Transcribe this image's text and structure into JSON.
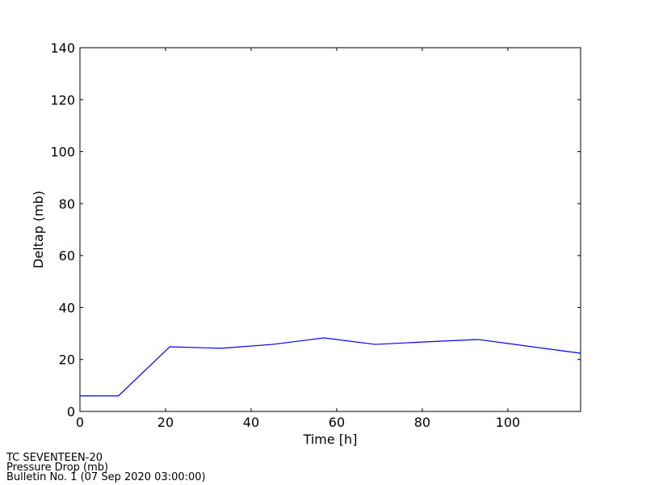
{
  "chart_data": {
    "type": "line",
    "xlabel": "Time [h]",
    "ylabel": "Deltap (mb)",
    "x": [
      0,
      9,
      21,
      33,
      45,
      57,
      69,
      81,
      93,
      117
    ],
    "series": [
      {
        "name": "Pressure Drop",
        "color": "#0000ff",
        "values": [
          6,
          6,
          24.9,
          24.3,
          25.8,
          28.3,
          25.8,
          26.8,
          27.7,
          22.4
        ]
      }
    ],
    "xlim": [
      0,
      117
    ],
    "xticks": [
      0,
      20,
      40,
      60,
      80,
      100
    ],
    "ylim": [
      0,
      140
    ],
    "yticks": [
      0,
      20,
      40,
      60,
      80,
      100,
      120,
      140
    ],
    "annotations": [
      "TC SEVENTEEN-20",
      "Pressure Drop (mb)",
      "Bulletin No. 1 (07 Sep 2020  03:00:00)"
    ]
  }
}
